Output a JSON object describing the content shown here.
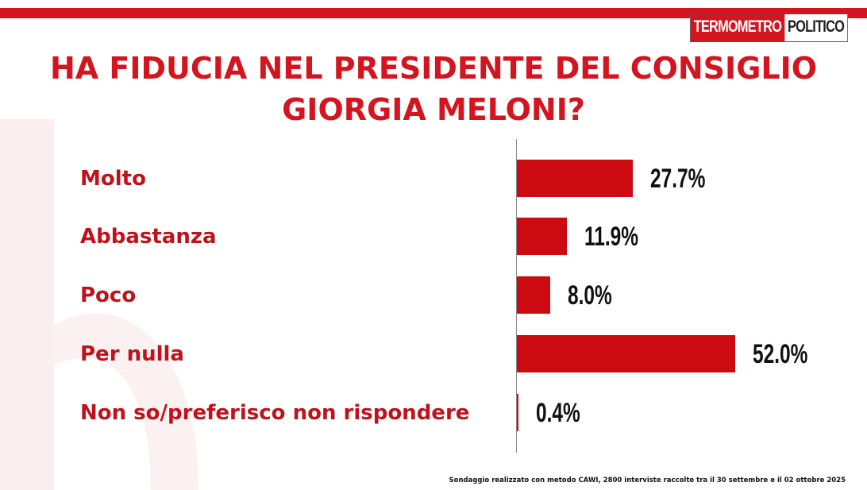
{
  "header": {
    "logo_part1": "TERMOMETRO",
    "logo_part2": "POLITICO"
  },
  "chart_data": {
    "type": "bar",
    "orientation": "horizontal",
    "title_lines": [
      "HA FIDUCIA NEL PRESIDENTE DEL CONSIGLIO",
      "GIORGIA MELONI?"
    ],
    "categories": [
      "Molto",
      "Abbastanza",
      "Poco",
      "Per nulla",
      "Non so/preferisco non rispondere"
    ],
    "values": [
      27.7,
      11.9,
      8.0,
      52.0,
      0.4
    ],
    "value_labels": [
      "27.7%",
      "11.9%",
      "8.0%",
      "52.0%",
      "0.4%"
    ],
    "unit": "%",
    "xlim": [
      0,
      52.0
    ],
    "bar_color": "#cc0a12",
    "grid": false,
    "legend": "none"
  },
  "footnote": "Sondaggio realizzato con metodo CAWI, 2800 interviste raccolte tra il 30 settembre e il 02 ottobre  2025",
  "colors": {
    "accent": "#d4141e",
    "label": "#c0121b",
    "value": "#111111"
  }
}
